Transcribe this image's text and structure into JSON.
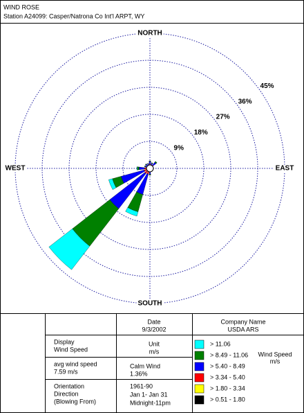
{
  "chart_data": {
    "type": "windrose",
    "title": "WIND ROSE",
    "subtitle": "Station A24099: Casper/Natrona Co Int'l ARPT, WY",
    "categories": [
      "NORTH",
      null,
      null,
      null,
      "EAST",
      null,
      null,
      null,
      "SOUTH",
      null,
      null,
      null,
      "WEST",
      null,
      null,
      null
    ],
    "series": [
      {
        "name": "> 11.06",
        "color": "#00ffff",
        "values": [
          0,
          0,
          0,
          0,
          0,
          0,
          0,
          0,
          0,
          1.5,
          9.9,
          1.3,
          0.2,
          0,
          0,
          0
        ]
      },
      {
        "name": "> 8.49 - 11.06",
        "color": "#008000",
        "values": [
          0.2,
          0.2,
          0.4,
          0,
          0,
          0,
          0,
          0,
          0.3,
          6.0,
          15.8,
          3.0,
          0.6,
          0.2,
          0.2,
          0.1
        ]
      },
      {
        "name": "> 5.40 - 8.49",
        "color": "#0000ff",
        "values": [
          0.8,
          0.6,
          1.2,
          0.3,
          0.2,
          0.1,
          0.1,
          0.3,
          0.8,
          7.0,
          14.8,
          8.0,
          1.8,
          0.6,
          0.6,
          0.5
        ]
      },
      {
        "name": "> 3.34 - 5.40",
        "color": "#ff0000",
        "values": [
          0.6,
          0.5,
          0.6,
          0.3,
          0.2,
          0.1,
          0.2,
          0.3,
          0.5,
          1.0,
          1.2,
          1.0,
          0.8,
          0.4,
          0.5,
          0.5
        ]
      },
      {
        "name": "> 1.80 - 3.34",
        "color": "#ffff00",
        "values": [
          0.5,
          0.4,
          0.5,
          0.3,
          0.2,
          0.2,
          0.2,
          0.3,
          0.4,
          0.6,
          0.6,
          0.6,
          0.6,
          0.4,
          0.4,
          0.4
        ]
      },
      {
        "name": "> 0.51 - 1.80",
        "color": "#000000",
        "values": [
          0.4,
          0.3,
          0.3,
          0.2,
          0.2,
          0.2,
          0.2,
          0.2,
          0.3,
          0.4,
          0.4,
          0.4,
          0.4,
          0.3,
          0.3,
          0.3
        ]
      }
    ],
    "rlim": [
      0,
      45
    ],
    "rticks": [
      {
        "value": 9,
        "label": "9%"
      },
      {
        "value": 18,
        "label": "18%"
      },
      {
        "value": 27,
        "label": "27%"
      },
      {
        "value": 36,
        "label": "36%"
      },
      {
        "value": 45,
        "label": "45%"
      }
    ],
    "grid": true,
    "legend_title": "Wind Speed",
    "legend_unit": "m/s"
  },
  "info": {
    "date_label": "Date",
    "date": "9/3/2002",
    "company_label": "Company Name",
    "company": "USDA ARS",
    "display_label": [
      "Display",
      "Wind Speed"
    ],
    "unit_label": "Unit",
    "unit": "m/s",
    "avg_label": "avg wind speed",
    "avg": "7.59 m/s",
    "calm_label": "Calm Wind",
    "calm": "1.36%",
    "orientation_label": [
      "Orientation",
      "Direction",
      "(Blowing From)"
    ],
    "period": [
      "1961-90",
      "Jan 1- Jan 31",
      "Midnight-11pm"
    ]
  }
}
